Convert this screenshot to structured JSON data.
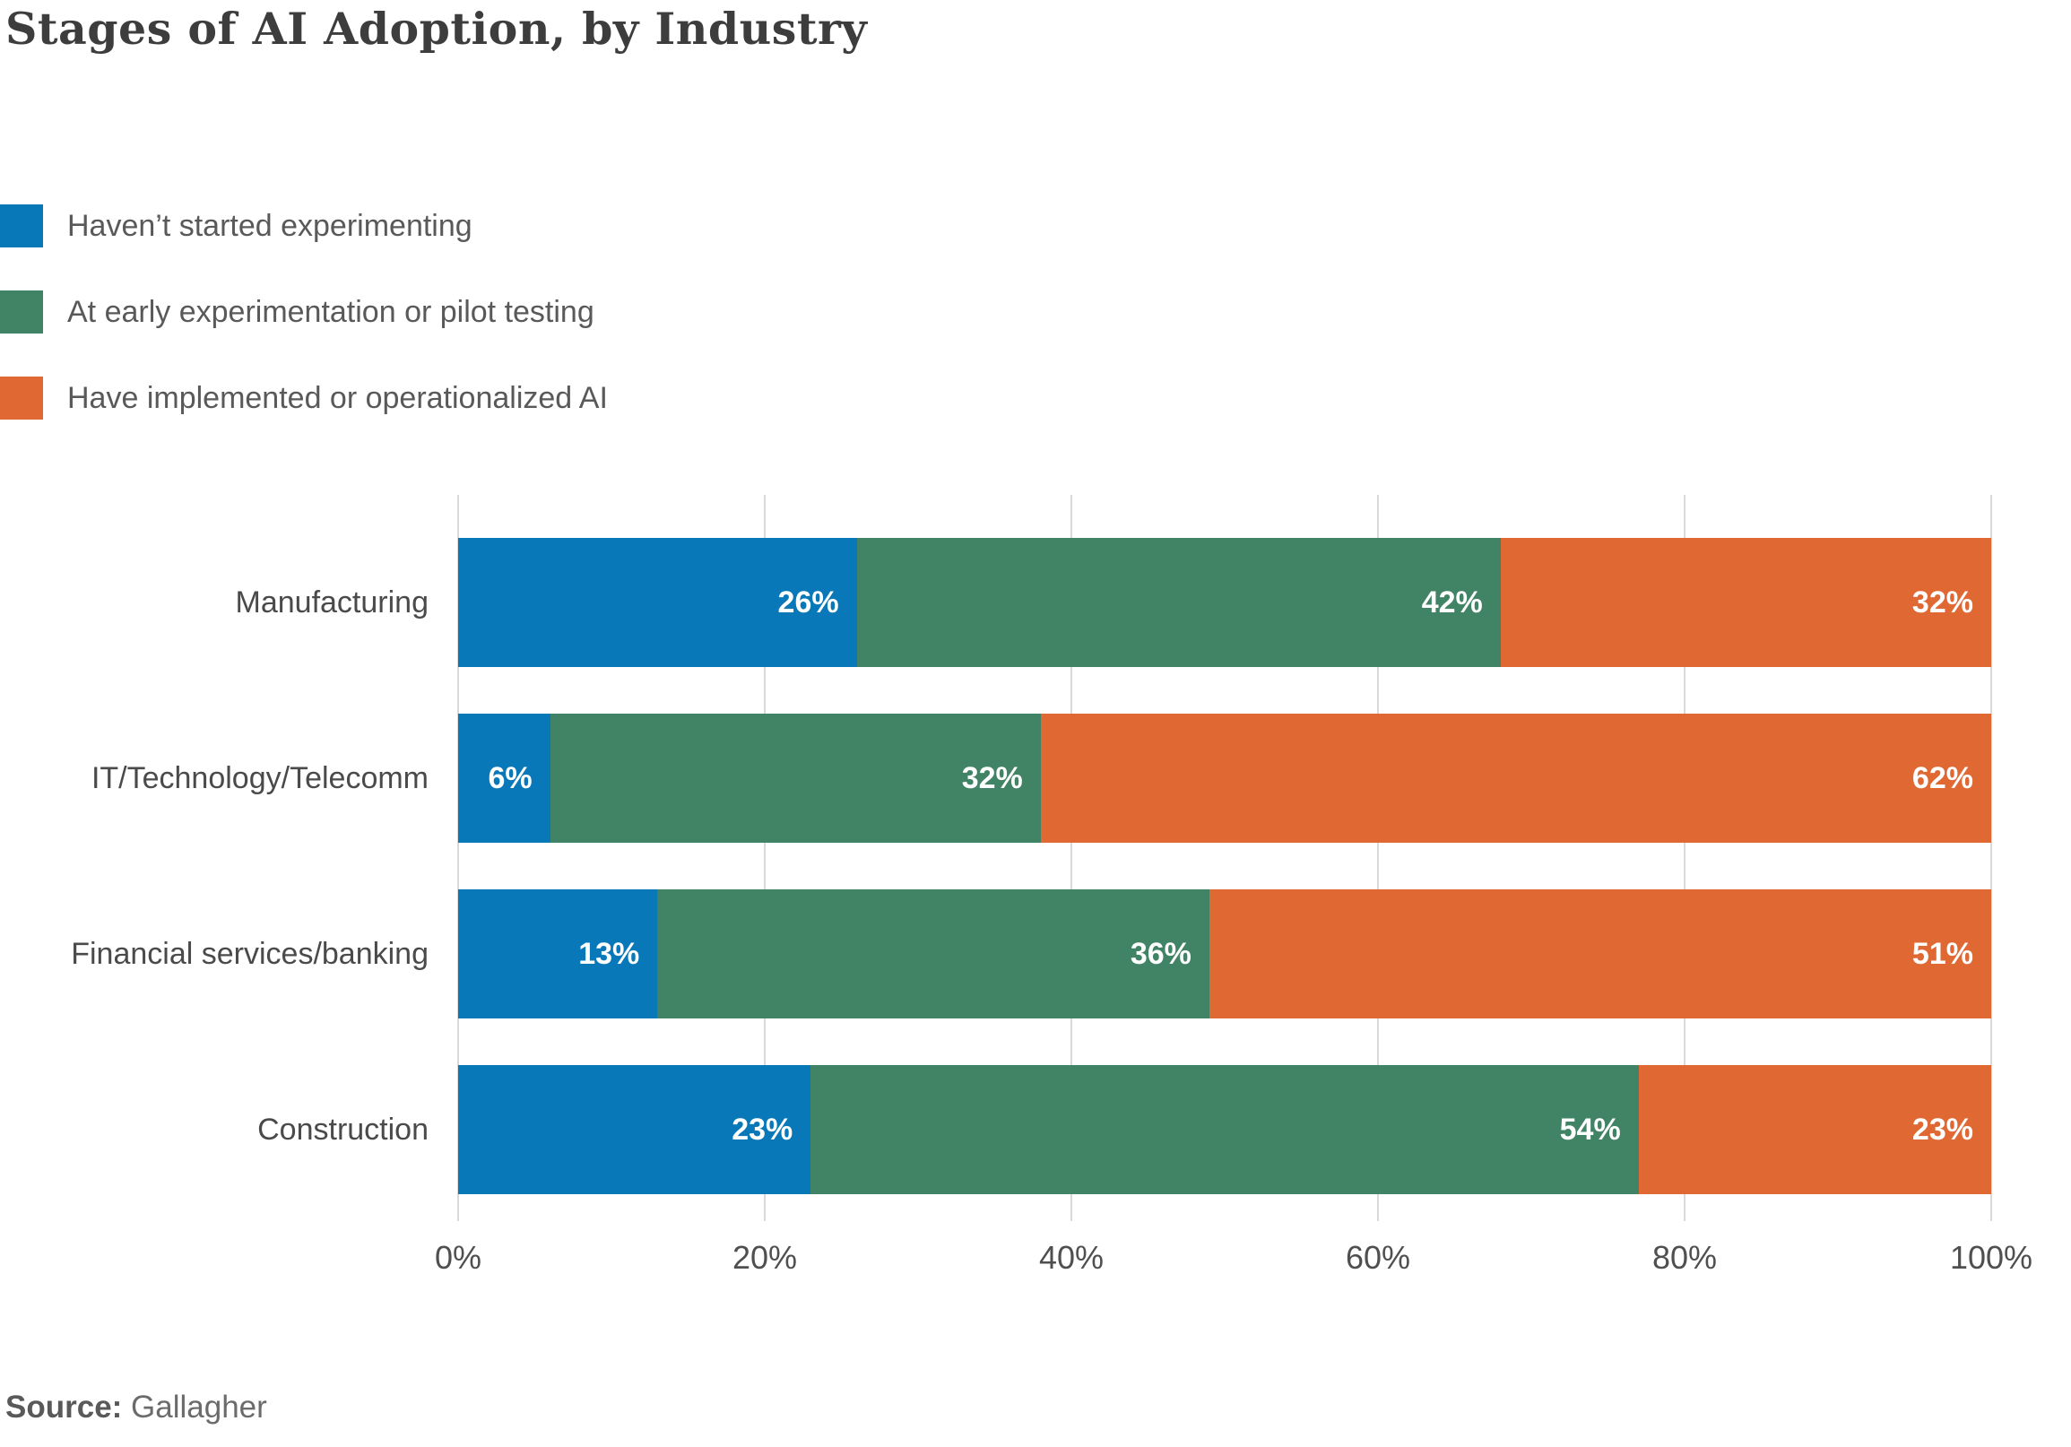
{
  "title": "Stages of AI Adoption, by Industry",
  "source": {
    "label": "Source:",
    "value": "Gallagher"
  },
  "colors": {
    "series_blue": "#0878b8",
    "series_green": "#418365",
    "series_orange": "#df6833",
    "grid": "#d9d9d9",
    "title_text": "#3d3d3d",
    "axis_text": "#4f4f4f",
    "legend_text": "#595959",
    "value_label_text": "#ffffff",
    "background": "#ffffff"
  },
  "chart_data": {
    "type": "bar",
    "stacked": true,
    "orientation": "horizontal",
    "title": "Stages of AI Adoption, by Industry",
    "categories": [
      "Manufacturing",
      "IT/Technology/Telecomm",
      "Financial services/banking",
      "Construction"
    ],
    "series": [
      {
        "name": "Haven’t started experimenting",
        "color": "#0878b8",
        "values": [
          26,
          6,
          13,
          23
        ]
      },
      {
        "name": "At early experimentation or pilot testing",
        "color": "#418365",
        "values": [
          42,
          32,
          36,
          54
        ]
      },
      {
        "name": "Have implemented or operationalized AI",
        "color": "#df6833",
        "values": [
          32,
          62,
          51,
          23
        ]
      }
    ],
    "x_ticks": [
      "0%",
      "20%",
      "40%",
      "60%",
      "80%",
      "100%"
    ],
    "xlim": [
      0,
      100
    ],
    "value_suffix": "%",
    "xlabel": "",
    "ylabel": "",
    "grid": "vertical",
    "legend_position": "top-left"
  }
}
